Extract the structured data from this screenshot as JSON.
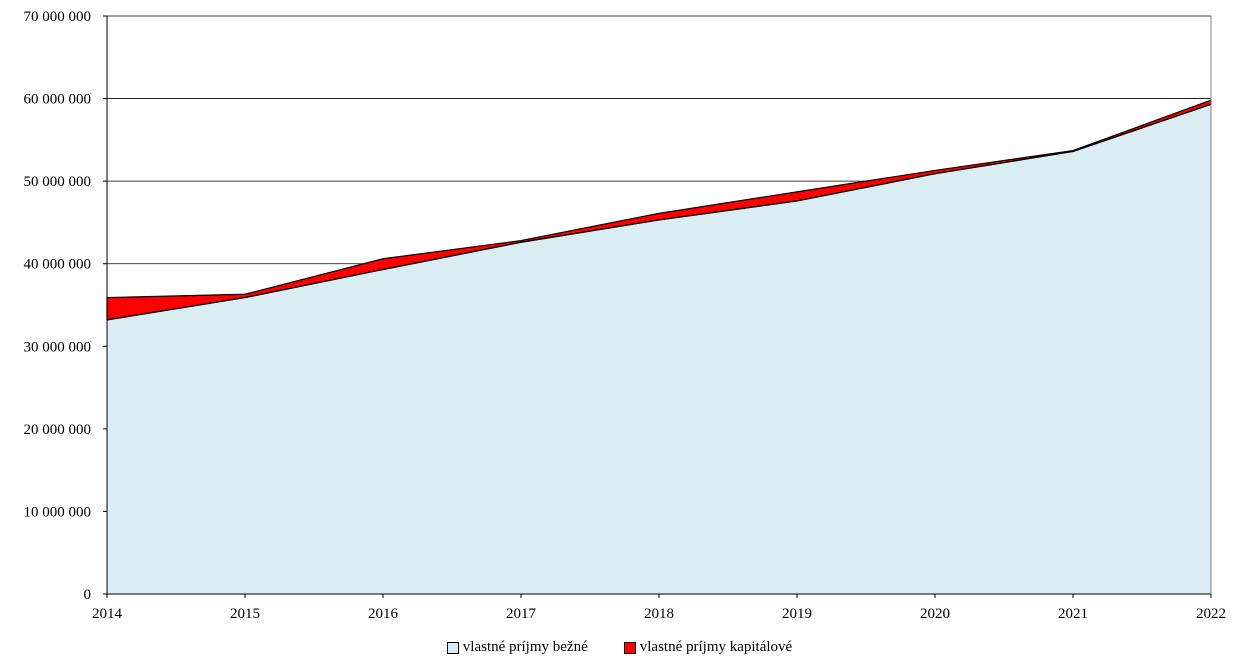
{
  "chart_data": {
    "type": "area",
    "stacked": true,
    "x": [
      "2014",
      "2015",
      "2016",
      "2017",
      "2018",
      "2019",
      "2020",
      "2021",
      "2022"
    ],
    "series": [
      {
        "name": "vlastné príjmy bežné",
        "color": "#daedf3",
        "values": [
          33200000,
          35900000,
          39300000,
          42600000,
          45300000,
          47600000,
          50900000,
          53600000,
          59300000
        ]
      },
      {
        "name": "vlastné príjmy kapitálové",
        "color": "#ff0000",
        "values": [
          2700000,
          400000,
          1300000,
          200000,
          800000,
          1100000,
          400000,
          100000,
          500000
        ]
      }
    ],
    "y_ticks": [
      "0",
      "10 000 000",
      "20 000 000",
      "30 000 000",
      "40 000 000",
      "50 000 000",
      "60 000 000",
      "70 000 000"
    ],
    "ylim": [
      0,
      70000000
    ],
    "title": "",
    "xlabel": "",
    "ylabel": "",
    "grid": true,
    "legend_position": "bottom"
  }
}
